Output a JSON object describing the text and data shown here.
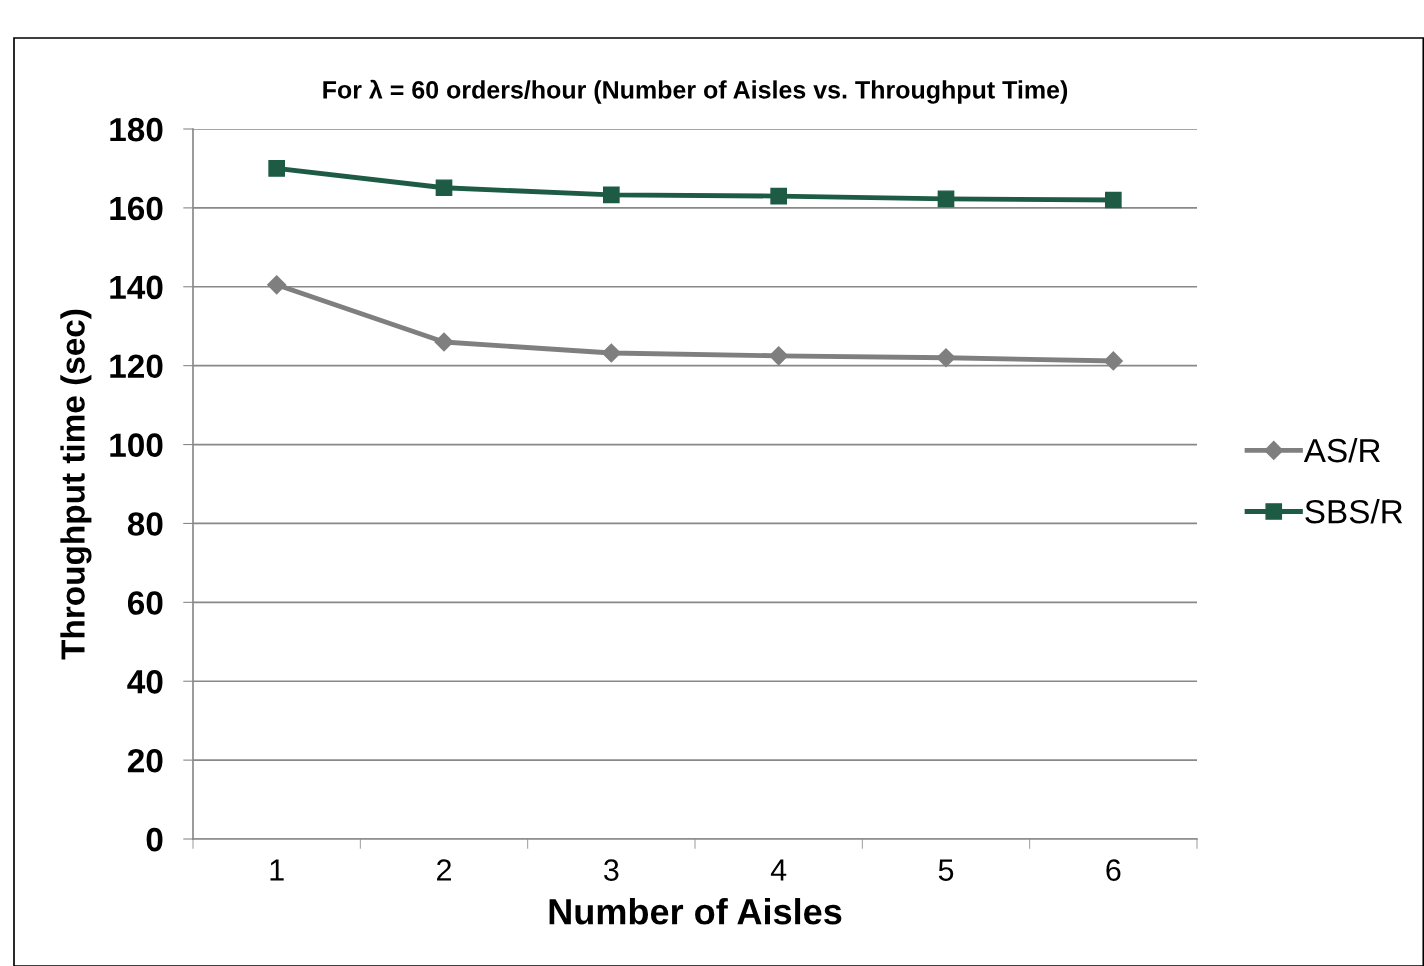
{
  "chart_data": {
    "type": "line",
    "title": "For λ = 60 orders/hour (Number of Aisles vs. Throughput Time)",
    "xlabel": "Number of Aisles",
    "ylabel": "Throughput time (sec)",
    "categories": [
      "1",
      "2",
      "3",
      "4",
      "5",
      "6"
    ],
    "series": [
      {
        "name": "AS/R",
        "color": "#7f7f7f",
        "marker": "diamond",
        "values": [
          140.5,
          126.0,
          123.2,
          122.5,
          122.0,
          121.2
        ]
      },
      {
        "name": "SBS/R",
        "color": "#1e5b45",
        "marker": "square",
        "values": [
          170.0,
          165.1,
          163.3,
          163.0,
          162.3,
          162.0
        ]
      }
    ],
    "ylim": [
      0,
      180
    ],
    "yticks": [
      0,
      20,
      40,
      60,
      80,
      100,
      120,
      140,
      160,
      180
    ],
    "grid": "y",
    "legend": "right",
    "line_style": "solid"
  }
}
